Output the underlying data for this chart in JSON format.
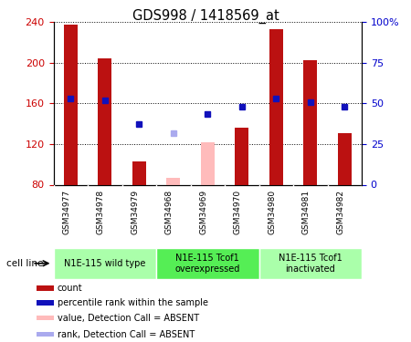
{
  "title": "GDS998 / 1418569_at",
  "samples": [
    "GSM34977",
    "GSM34978",
    "GSM34979",
    "GSM34968",
    "GSM34969",
    "GSM34970",
    "GSM34980",
    "GSM34981",
    "GSM34982"
  ],
  "count_values": [
    238,
    204,
    103,
    null,
    null,
    136,
    233,
    203,
    131
  ],
  "count_absent": [
    null,
    null,
    null,
    87,
    122,
    null,
    null,
    null,
    null
  ],
  "percentile_values": [
    165,
    163,
    140,
    null,
    150,
    157,
    165,
    161,
    157
  ],
  "percentile_absent": [
    null,
    null,
    null,
    131,
    null,
    null,
    null,
    null,
    null
  ],
  "ylim_left": [
    80,
    240
  ],
  "ylim_right": [
    0,
    100
  ],
  "yticks_left": [
    80,
    120,
    160,
    200,
    240
  ],
  "yticks_right": [
    0,
    25,
    50,
    75,
    100
  ],
  "ytick_labels_right": [
    "0",
    "25",
    "50",
    "75",
    "100%"
  ],
  "groups": [
    {
      "label": "N1E-115 wild type",
      "start": 0,
      "end": 3,
      "color": "#aaffaa"
    },
    {
      "label": "N1E-115 Tcof1\noverexpressed",
      "start": 3,
      "end": 6,
      "color": "#55ee55"
    },
    {
      "label": "N1E-115 Tcof1\ninactivated",
      "start": 6,
      "end": 9,
      "color": "#aaffaa"
    }
  ],
  "bar_color_red": "#bb1111",
  "bar_color_pink": "#ffbbbb",
  "dot_color_blue": "#1111bb",
  "dot_color_light_blue": "#aaaaee",
  "legend_items": [
    {
      "label": "count",
      "color": "#bb1111"
    },
    {
      "label": "percentile rank within the sample",
      "color": "#1111bb"
    },
    {
      "label": "value, Detection Call = ABSENT",
      "color": "#ffbbbb"
    },
    {
      "label": "rank, Detection Call = ABSENT",
      "color": "#aaaaee"
    }
  ],
  "cell_line_label": "cell line",
  "sample_bg_color": "#cccccc",
  "plot_bg_color": "#ffffff",
  "tick_label_color_left": "#cc0000",
  "tick_label_color_right": "#0000cc",
  "bar_width": 0.4
}
